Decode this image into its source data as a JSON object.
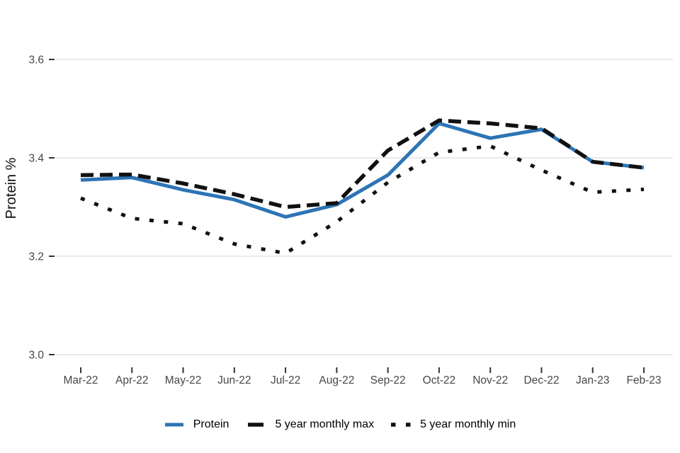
{
  "chart_data": {
    "type": "line",
    "title": "",
    "xlabel": "",
    "ylabel": "Protein %",
    "ylim": [
      3.0,
      3.6
    ],
    "yticks": [
      "3.0",
      "3.2",
      "3.4",
      "3.6"
    ],
    "categories": [
      "Mar-22",
      "Apr-22",
      "May-22",
      "Jun-22",
      "Jul-22",
      "Aug-22",
      "Sep-22",
      "Oct-22",
      "Nov-22",
      "Dec-22",
      "Jan-23",
      "Feb-23"
    ],
    "series": [
      {
        "name": "Protein",
        "color": "#2d74b5",
        "style": "solid",
        "values": [
          3.355,
          3.36,
          3.335,
          3.315,
          3.28,
          3.305,
          3.365,
          3.47,
          3.44,
          3.458,
          3.392,
          3.38
        ]
      },
      {
        "name": "5 year monthly max",
        "color": "#111111",
        "style": "dashed",
        "values": [
          3.365,
          3.366,
          3.348,
          3.326,
          3.3,
          3.308,
          3.415,
          3.476,
          3.47,
          3.46,
          3.392,
          3.38
        ]
      },
      {
        "name": "5 year monthly min",
        "color": "#111111",
        "style": "dotted",
        "values": [
          3.318,
          3.277,
          3.266,
          3.225,
          3.206,
          3.27,
          3.35,
          3.411,
          3.424,
          3.375,
          3.33,
          3.336
        ]
      }
    ],
    "legend_position": "bottom",
    "grid": "horizontal",
    "grid_color": "#e6e6e6",
    "axis_text_color": "#474747",
    "tick_color": "#333333"
  }
}
